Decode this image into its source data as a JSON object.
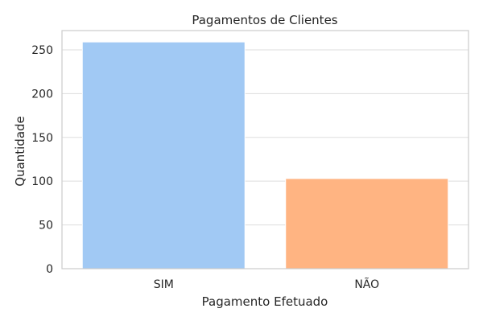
{
  "chart_data": {
    "type": "bar",
    "title": "Pagamentos de Clientes",
    "xlabel": "Pagamento Efetuado",
    "ylabel": "Quantidade",
    "categories": [
      "SIM",
      "NÃO"
    ],
    "values": [
      259,
      103
    ],
    "ylim": [
      0,
      272
    ],
    "yticks": [
      0,
      50,
      100,
      150,
      200,
      250
    ],
    "colors": [
      "#a1c9f4",
      "#ffb482"
    ],
    "grid": "y"
  }
}
